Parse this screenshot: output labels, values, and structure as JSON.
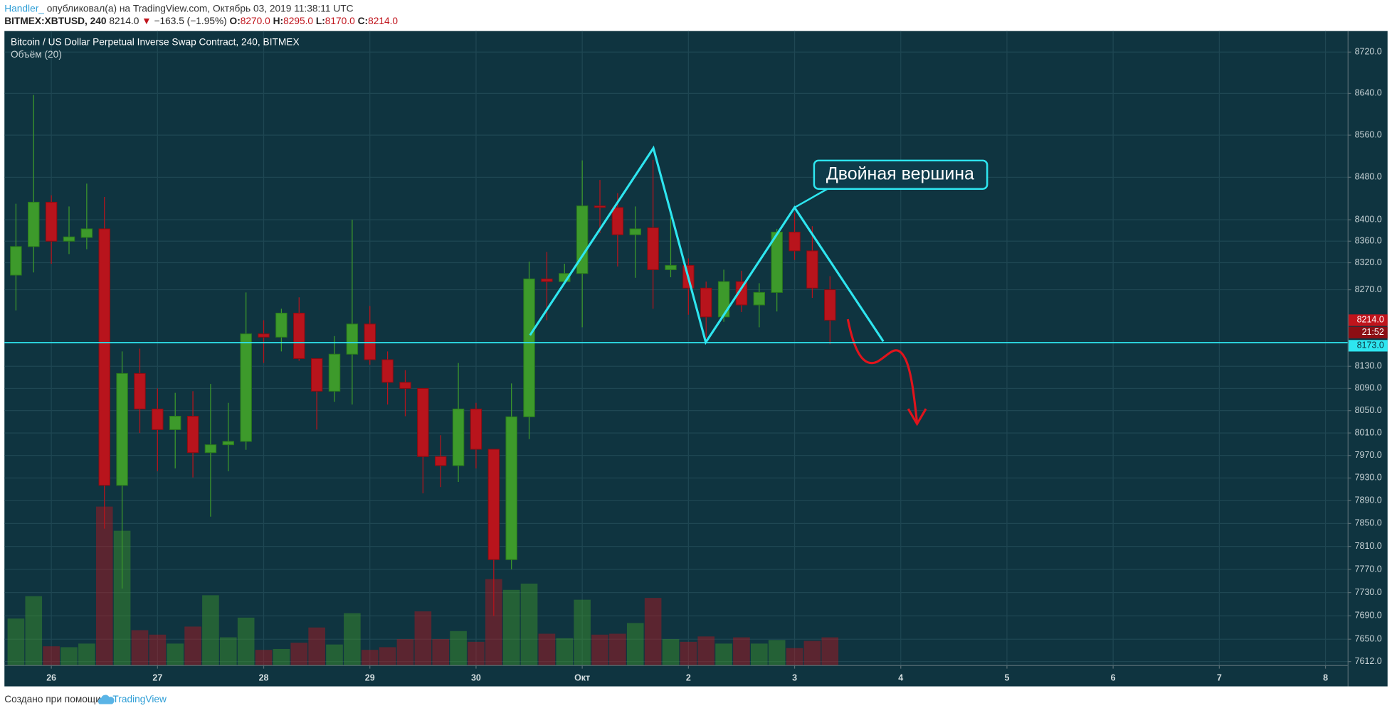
{
  "header": {
    "author": "Handler_",
    "published": "опубликовал(а) на TradingView.com, Октябрь 03, 2019 11:38:11 UTC",
    "symbol": "BITMEX:XBTUSD, 240",
    "last": "8214.0",
    "arrow": "▼",
    "change": "−163.5 (−1.95%)",
    "o_label": "O:",
    "o": "8270.0",
    "h_label": "H:",
    "h": "8295.0",
    "l_label": "L:",
    "l": "8170.0",
    "c_label": "C:",
    "c": "8214.0"
  },
  "chart_data": {
    "type": "candlestick",
    "title": "Bitcoin / US Dollar Perpetual Inverse Swap Contract, 240, BITMEX",
    "subtitle": "Объём (20)",
    "annotation": "Двойная вершина",
    "log_scale": true,
    "grid": true,
    "up_color": "#3d9a2b",
    "down_color": "#b8141c",
    "xlim": [
      -0.65,
      75.25
    ],
    "xticks": [
      {
        "value": 2,
        "label": "26"
      },
      {
        "value": 8,
        "label": "27"
      },
      {
        "value": 14,
        "label": "28"
      },
      {
        "value": 20,
        "label": "29"
      },
      {
        "value": 26,
        "label": "30"
      },
      {
        "value": 32,
        "label": "Окт"
      },
      {
        "value": 38,
        "label": "2"
      },
      {
        "value": 44,
        "label": "3"
      },
      {
        "value": 50,
        "label": "4"
      },
      {
        "value": 56,
        "label": "5"
      },
      {
        "value": 62,
        "label": "6"
      },
      {
        "value": 68,
        "label": "7"
      },
      {
        "value": 74,
        "label": "8"
      }
    ],
    "ylim": [
      7606,
      8761
    ],
    "yticks": [
      {
        "value": 8720,
        "label": "8720.0"
      },
      {
        "value": 8640,
        "label": "8640.0"
      },
      {
        "value": 8560,
        "label": "8560.0"
      },
      {
        "value": 8480,
        "label": "8480.0"
      },
      {
        "value": 8400,
        "label": "8400.0"
      },
      {
        "value": 8360,
        "label": "8360.0"
      },
      {
        "value": 8320,
        "label": "8320.0"
      },
      {
        "value": 8270,
        "label": "8270.0"
      },
      {
        "value": 8130,
        "label": "8130.0"
      },
      {
        "value": 8090,
        "label": "8090.0"
      },
      {
        "value": 8050,
        "label": "8050.0"
      },
      {
        "value": 8010,
        "label": "8010.0"
      },
      {
        "value": 7970,
        "label": "7970.0"
      },
      {
        "value": 7930,
        "label": "7930.0"
      },
      {
        "value": 7890,
        "label": "7890.0"
      },
      {
        "value": 7850,
        "label": "7850.0"
      },
      {
        "value": 7810,
        "label": "7810.0"
      },
      {
        "value": 7770,
        "label": "7770.0"
      },
      {
        "value": 7730,
        "label": "7730.0"
      },
      {
        "value": 7690,
        "label": "7690.0"
      },
      {
        "value": 7650,
        "label": "7650.0"
      },
      {
        "value": 7612,
        "label": "7612.0"
      }
    ],
    "open": [
      8297,
      8350,
      8433,
      8360,
      8367,
      8383,
      7917,
      8117,
      8053,
      8016,
      8040,
      7975,
      7989,
      7995,
      8189,
      8183,
      8227,
      8144,
      8085,
      8152,
      8207,
      8142,
      8101,
      8090,
      7968,
      7952,
      8053,
      7981,
      7787,
      8039,
      8290,
      8285,
      8300,
      8426,
      8423,
      8372,
      8385,
      8307,
      8315,
      8273,
      8220,
      8285,
      8242,
      8265,
      8377,
      8342,
      8270
    ],
    "high": [
      8430,
      8637,
      8446,
      8425,
      8468,
      8443,
      8157,
      8162,
      8090,
      8082,
      8085,
      8098,
      8064,
      8265,
      8214,
      8235,
      8256,
      8144,
      8185,
      8400,
      8240,
      8157,
      8123,
      8090,
      8006,
      8136,
      8064,
      7981,
      8099,
      8322,
      8340,
      8318,
      8512,
      8475,
      8450,
      8425,
      8513,
      8405,
      8328,
      8285,
      8307,
      8305,
      8282,
      8383,
      8413,
      8388,
      8295
    ],
    "low": [
      8232,
      8302,
      8318,
      8336,
      8345,
      7841,
      7737,
      8010,
      7942,
      7947,
      7931,
      7862,
      7942,
      7980,
      8136,
      8157,
      8140,
      8016,
      8066,
      8061,
      8133,
      8061,
      8040,
      7903,
      7914,
      7923,
      7947,
      7690,
      7770,
      7999,
      8214,
      8285,
      8201,
      8375,
      8313,
      8292,
      8235,
      8293,
      8224,
      8182,
      8211,
      8229,
      8201,
      8230,
      8325,
      8255,
      8170
    ],
    "close": [
      8350,
      8433,
      8360,
      8368,
      8383,
      7917,
      8117,
      8053,
      8016,
      8040,
      7975,
      7989,
      7995,
      8189,
      8183,
      8227,
      8144,
      8085,
      8152,
      8207,
      8142,
      8101,
      8090,
      7968,
      7952,
      8053,
      7981,
      7787,
      8039,
      8290,
      8285,
      8300,
      8426,
      8423,
      8372,
      8383,
      8307,
      8315,
      8273,
      8220,
      8285,
      8242,
      8265,
      8377,
      8342,
      8273,
      8214
    ],
    "volume": [
      52,
      77,
      21,
      20,
      24,
      177,
      150,
      39,
      34,
      24,
      43,
      78,
      31,
      53,
      17,
      18,
      25,
      42,
      23,
      58,
      17,
      20,
      29,
      60,
      29,
      38,
      26,
      96,
      84,
      91,
      35,
      30,
      73,
      34,
      35,
      47,
      75,
      29,
      26,
      32,
      24,
      31,
      24,
      28,
      19,
      27,
      31
    ],
    "last_price": {
      "value": 8214,
      "label": "8214.0"
    },
    "countdown": "21:52",
    "support": {
      "value": 8173,
      "label": "8173.0"
    }
  },
  "footer": {
    "text": "Создано при помощи",
    "brand": "TradingView"
  }
}
